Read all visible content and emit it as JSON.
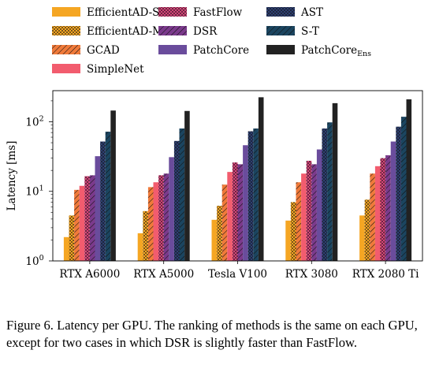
{
  "chart_data": {
    "type": "bar",
    "ylabel": "Latency [ms]",
    "yscale": "log",
    "ylim": [
      1,
      280
    ],
    "yticks": [
      {
        "value": 1,
        "label": "10",
        "exp": "0"
      },
      {
        "value": 10,
        "label": "10",
        "exp": "1"
      },
      {
        "value": 100,
        "label": "10",
        "exp": "2"
      }
    ],
    "categories": [
      "RTX A6000",
      "RTX A5000",
      "Tesla V100",
      "RTX 3080",
      "RTX 2080 Ti"
    ],
    "legend_position": "top",
    "grid": false,
    "series": [
      {
        "name": "EfficientAD-S",
        "sub": "",
        "color": "#f5a623",
        "pattern": "solid",
        "values": [
          2.2,
          2.5,
          3.9,
          3.8,
          4.5
        ]
      },
      {
        "name": "EfficientAD-M",
        "sub": "",
        "color": "#f5a623",
        "pattern": "dots",
        "values": [
          4.5,
          5.2,
          6.2,
          7.0,
          7.6
        ]
      },
      {
        "name": "GCAD",
        "sub": "",
        "color": "#f07a3a",
        "pattern": "hatch",
        "values": [
          10.5,
          11.5,
          12.5,
          13.5,
          18.0
        ]
      },
      {
        "name": "SimpleNet",
        "sub": "",
        "color": "#f25c6e",
        "pattern": "solid",
        "values": [
          12.0,
          13.5,
          19.0,
          18.0,
          23.0
        ]
      },
      {
        "name": "FastFlow",
        "sub": "",
        "color": "#d6457a",
        "pattern": "dots",
        "values": [
          16.5,
          17.0,
          26.0,
          27.5,
          30.0
        ]
      },
      {
        "name": "DSR",
        "sub": "",
        "color": "#7b3a8c",
        "pattern": "hatch",
        "values": [
          17.0,
          18.0,
          24.5,
          24.5,
          33.0
        ]
      },
      {
        "name": "PatchCore",
        "sub": "",
        "color": "#6a4c9c",
        "pattern": "solid",
        "values": [
          32.0,
          31.0,
          46.0,
          40.0,
          52.0
        ]
      },
      {
        "name": "AST",
        "sub": "",
        "color": "#2d3f72",
        "pattern": "dots",
        "values": [
          52.0,
          53.0,
          73.0,
          80.0,
          85.0
        ]
      },
      {
        "name": "S-T",
        "sub": "",
        "color": "#1b4560",
        "pattern": "hatch",
        "values": [
          72.0,
          80.0,
          80.0,
          98.0,
          118.0
        ]
      },
      {
        "name": "PatchCore",
        "sub": "Ens",
        "color": "#222222",
        "pattern": "solid",
        "values": [
          145.0,
          143.0,
          225.0,
          185.0,
          210.0
        ]
      }
    ]
  },
  "caption": "Figure 6. Latency per GPU. The ranking of methods is the same on each GPU, except for two cases in which DSR is slightly faster than FastFlow."
}
